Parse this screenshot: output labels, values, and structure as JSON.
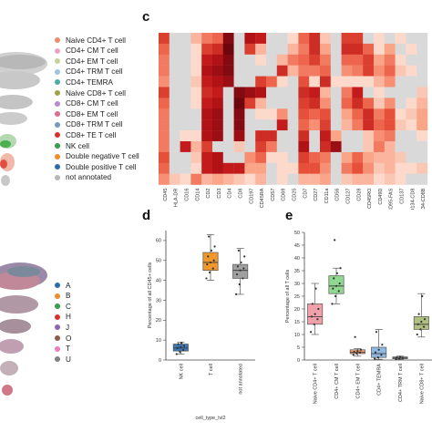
{
  "panels": {
    "c": "c",
    "d": "d",
    "e": "e"
  },
  "legend_celltype": [
    {
      "label": "Naive CD4+ T cell",
      "color": "#f08c6c"
    },
    {
      "label": "CD4+ CM T cell",
      "color": "#e8a4c4"
    },
    {
      "label": "CD4+ EM T cell",
      "color": "#c4d49c"
    },
    {
      "label": "CD4+ TRM T cell",
      "color": "#9cc4e4"
    },
    {
      "label": "CD4+ TEMRA",
      "color": "#4caca4"
    },
    {
      "label": "Naive CD8+ T cell",
      "color": "#a0a448"
    },
    {
      "label": "CD8+ CM T cell",
      "color": "#b88ad0"
    },
    {
      "label": "CD8+ EM T cell",
      "color": "#e06c8c"
    },
    {
      "label": "CD8+ TRM T cell",
      "color": "#7898c0"
    },
    {
      "label": "CD8+ TE T cell",
      "color": "#d4342c"
    },
    {
      "label": "NK cell",
      "color": "#3c9c4c"
    },
    {
      "label": "Double negative T cell",
      "color": "#f08c2c"
    },
    {
      "label": "Double positive T cell",
      "color": "#2c6cac"
    },
    {
      "label": "not annotated",
      "color": "#b8b8b8"
    }
  ],
  "legend_sample": [
    {
      "label": "A",
      "color": "#2c6cac"
    },
    {
      "label": "B",
      "color": "#f08c2c"
    },
    {
      "label": "C",
      "color": "#3c9c4c"
    },
    {
      "label": "H",
      "color": "#d4342c"
    },
    {
      "label": "J",
      "color": "#8c64b4"
    },
    {
      "label": "O",
      "color": "#8c5c4c"
    },
    {
      "label": "T",
      "color": "#e87cbc"
    },
    {
      "label": "U",
      "color": "#808080"
    }
  ],
  "chart_data": [
    {
      "type": "heatmap",
      "xlabels": [
        "CD45",
        "HLA-DR",
        "CD16",
        "CD14",
        "CD2",
        "CD3",
        "CD4",
        "CD8",
        "CD197",
        "CD45RA",
        "CD57",
        "CD69",
        "CD25",
        "CD7",
        "CD27",
        "CD11a",
        "CD56",
        "CD127",
        "CD28",
        "CD45RO",
        "CD49D",
        "CD95-FAS",
        "CD137",
        "CD134-CD8",
        "CD134-CD8B"
      ],
      "rows": 14,
      "values": [
        [
          0.7,
          0.15,
          0.1,
          0.4,
          0.55,
          0.6,
          0.95,
          0.1,
          0.85,
          0.8,
          0.1,
          0.1,
          0.3,
          0.6,
          0.75,
          0.35,
          0.1,
          0.7,
          0.7,
          0.2,
          0.3,
          0.2,
          0.3,
          0.1,
          0.1
        ],
        [
          0.6,
          0.1,
          0.1,
          0.3,
          0.7,
          0.75,
          1.0,
          0.1,
          0.7,
          0.4,
          0.1,
          0.2,
          0.4,
          0.55,
          0.75,
          0.45,
          0.1,
          0.75,
          0.75,
          0.6,
          0.3,
          0.45,
          0.25,
          0.3,
          0.1
        ],
        [
          0.55,
          0.2,
          0.15,
          0.3,
          0.8,
          0.85,
          0.95,
          0.1,
          0.25,
          0.3,
          0.2,
          0.4,
          0.55,
          0.6,
          0.7,
          0.55,
          0.15,
          0.6,
          0.6,
          0.7,
          0.45,
          0.55,
          0.3,
          0.25,
          0.1
        ],
        [
          0.55,
          0.25,
          0.1,
          0.3,
          0.85,
          0.9,
          0.95,
          0.1,
          0.15,
          0.2,
          0.2,
          0.75,
          0.4,
          0.55,
          0.55,
          0.6,
          0.1,
          0.5,
          0.55,
          0.7,
          0.5,
          0.6,
          0.35,
          0.3,
          0.1
        ],
        [
          0.5,
          0.1,
          0.25,
          0.35,
          0.8,
          0.85,
          0.9,
          0.1,
          0.1,
          0.7,
          0.6,
          0.3,
          0.2,
          0.65,
          0.3,
          0.75,
          0.3,
          0.3,
          0.3,
          0.3,
          0.4,
          0.5,
          0.2,
          0.15,
          0.1
        ],
        [
          0.7,
          0.1,
          0.1,
          0.3,
          0.75,
          0.8,
          0.2,
          0.95,
          0.9,
          0.85,
          0.1,
          0.1,
          0.1,
          0.75,
          0.8,
          0.4,
          0.1,
          0.55,
          0.8,
          0.2,
          0.3,
          0.2,
          0.25,
          0.2,
          0.35
        ],
        [
          0.6,
          0.1,
          0.1,
          0.3,
          0.8,
          0.85,
          0.15,
          1.0,
          0.7,
          0.4,
          0.15,
          0.2,
          0.15,
          0.7,
          0.75,
          0.5,
          0.1,
          0.6,
          0.75,
          0.6,
          0.35,
          0.5,
          0.2,
          0.3,
          0.4
        ],
        [
          0.55,
          0.25,
          0.1,
          0.25,
          0.85,
          0.9,
          0.15,
          0.95,
          0.2,
          0.3,
          0.3,
          0.5,
          0.15,
          0.65,
          0.6,
          0.65,
          0.2,
          0.45,
          0.6,
          0.75,
          0.55,
          0.65,
          0.3,
          0.35,
          0.45
        ],
        [
          0.55,
          0.25,
          0.1,
          0.25,
          0.85,
          0.9,
          0.1,
          0.95,
          0.1,
          0.2,
          0.25,
          0.8,
          0.15,
          0.6,
          0.5,
          0.7,
          0.15,
          0.4,
          0.55,
          0.75,
          0.6,
          0.65,
          0.35,
          0.3,
          0.45
        ],
        [
          0.55,
          0.15,
          0.3,
          0.3,
          0.85,
          0.9,
          0.1,
          0.9,
          0.1,
          0.75,
          0.75,
          0.25,
          0.1,
          0.75,
          0.25,
          0.8,
          0.45,
          0.25,
          0.25,
          0.35,
          0.5,
          0.55,
          0.25,
          0.2,
          0.3
        ],
        [
          0.55,
          0.2,
          0.8,
          0.4,
          0.7,
          0.1,
          0.1,
          0.35,
          0.1,
          0.7,
          0.55,
          0.15,
          0.1,
          0.85,
          0.2,
          0.75,
          0.9,
          0.2,
          0.15,
          0.35,
          0.55,
          0.4,
          0.25,
          0.15,
          0.1
        ],
        [
          0.65,
          0.15,
          0.2,
          0.35,
          0.8,
          0.85,
          0.15,
          0.15,
          0.5,
          0.6,
          0.3,
          0.3,
          0.2,
          0.7,
          0.6,
          0.55,
          0.2,
          0.45,
          0.6,
          0.45,
          0.4,
          0.4,
          0.35,
          0.25,
          0.2
        ],
        [
          0.6,
          0.15,
          0.15,
          0.3,
          0.8,
          0.85,
          0.8,
          0.8,
          0.45,
          0.45,
          0.2,
          0.3,
          0.3,
          0.65,
          0.65,
          0.5,
          0.15,
          0.55,
          0.65,
          0.5,
          0.35,
          0.4,
          0.3,
          0.3,
          0.35
        ],
        [
          0.5,
          0.35,
          0.3,
          0.55,
          0.4,
          0.45,
          0.4,
          0.35,
          0.3,
          0.4,
          0.25,
          0.3,
          0.25,
          0.4,
          0.4,
          0.45,
          0.25,
          0.35,
          0.4,
          0.4,
          0.3,
          0.35,
          0.3,
          0.25,
          0.25
        ]
      ]
    },
    {
      "type": "box",
      "ylabel": "Percentage of all CD45+ cells",
      "xlabel": "cell_type_lvl2",
      "categories": [
        "NK cell",
        "T cell",
        "not annotated"
      ],
      "colors": [
        "#3c78b4",
        "#f0982c",
        "#a0a0a0"
      ],
      "ylim": [
        0,
        65
      ],
      "yticks": [
        0,
        10,
        20,
        30,
        40,
        50,
        60
      ],
      "boxes": [
        {
          "min": 3,
          "q1": 4.5,
          "median": 6,
          "q3": 8,
          "max": 9,
          "points": [
            3,
            4,
            5,
            6,
            6.5,
            7,
            8,
            8.5
          ]
        },
        {
          "min": 40,
          "q1": 45,
          "median": 49,
          "q3": 54,
          "max": 63,
          "points": [
            41,
            44,
            46,
            48,
            49,
            50,
            52,
            55,
            57,
            62
          ]
        },
        {
          "min": 33,
          "q1": 41,
          "median": 45,
          "q3": 48,
          "max": 56,
          "points": [
            33,
            38,
            41,
            43,
            45,
            46,
            47,
            49,
            52,
            55
          ]
        }
      ]
    },
    {
      "type": "box",
      "ylabel": "Percentage of all T cells",
      "categories": [
        "Naive CD4+ T cell",
        "CD4+ CM T cell",
        "CD4+ EM T cell",
        "CD4+ TEMRA",
        "CD4+ TRM T cell",
        "Naive CD8+ T cell"
      ],
      "colors": [
        "#f0a0a8",
        "#90d890",
        "#f0a070",
        "#90b8e0",
        "#b0b0b0",
        "#b0c080"
      ],
      "ylim": [
        0,
        50
      ],
      "yticks": [
        0,
        5,
        10,
        15,
        20,
        25,
        30,
        35,
        40,
        45,
        50
      ],
      "boxes": [
        {
          "min": 10,
          "q1": 14,
          "median": 17,
          "q3": 22,
          "max": 30,
          "points": [
            11,
            14,
            16,
            17,
            18,
            20,
            22,
            28
          ]
        },
        {
          "min": 22,
          "q1": 26,
          "median": 29,
          "q3": 33,
          "max": 36,
          "points": [
            22,
            25,
            27,
            28,
            29,
            30,
            32,
            34,
            36,
            47
          ]
        },
        {
          "min": 1.5,
          "q1": 2.5,
          "median": 3,
          "q3": 4,
          "max": 4.5,
          "points": [
            2,
            2.5,
            3,
            3.2,
            3.5,
            4,
            9
          ]
        },
        {
          "min": 0.3,
          "q1": 1,
          "median": 2.5,
          "q3": 5,
          "max": 12,
          "points": [
            0.5,
            1,
            2,
            3,
            4,
            6,
            11
          ]
        },
        {
          "min": 0.2,
          "q1": 0.5,
          "median": 0.8,
          "q3": 1.2,
          "max": 1.5,
          "points": [
            0.3,
            0.5,
            0.8,
            1,
            1.3
          ]
        },
        {
          "min": 9,
          "q1": 12,
          "median": 14,
          "q3": 17,
          "max": 26,
          "points": [
            10,
            12,
            13,
            14,
            15,
            16,
            18,
            25
          ]
        }
      ]
    }
  ]
}
